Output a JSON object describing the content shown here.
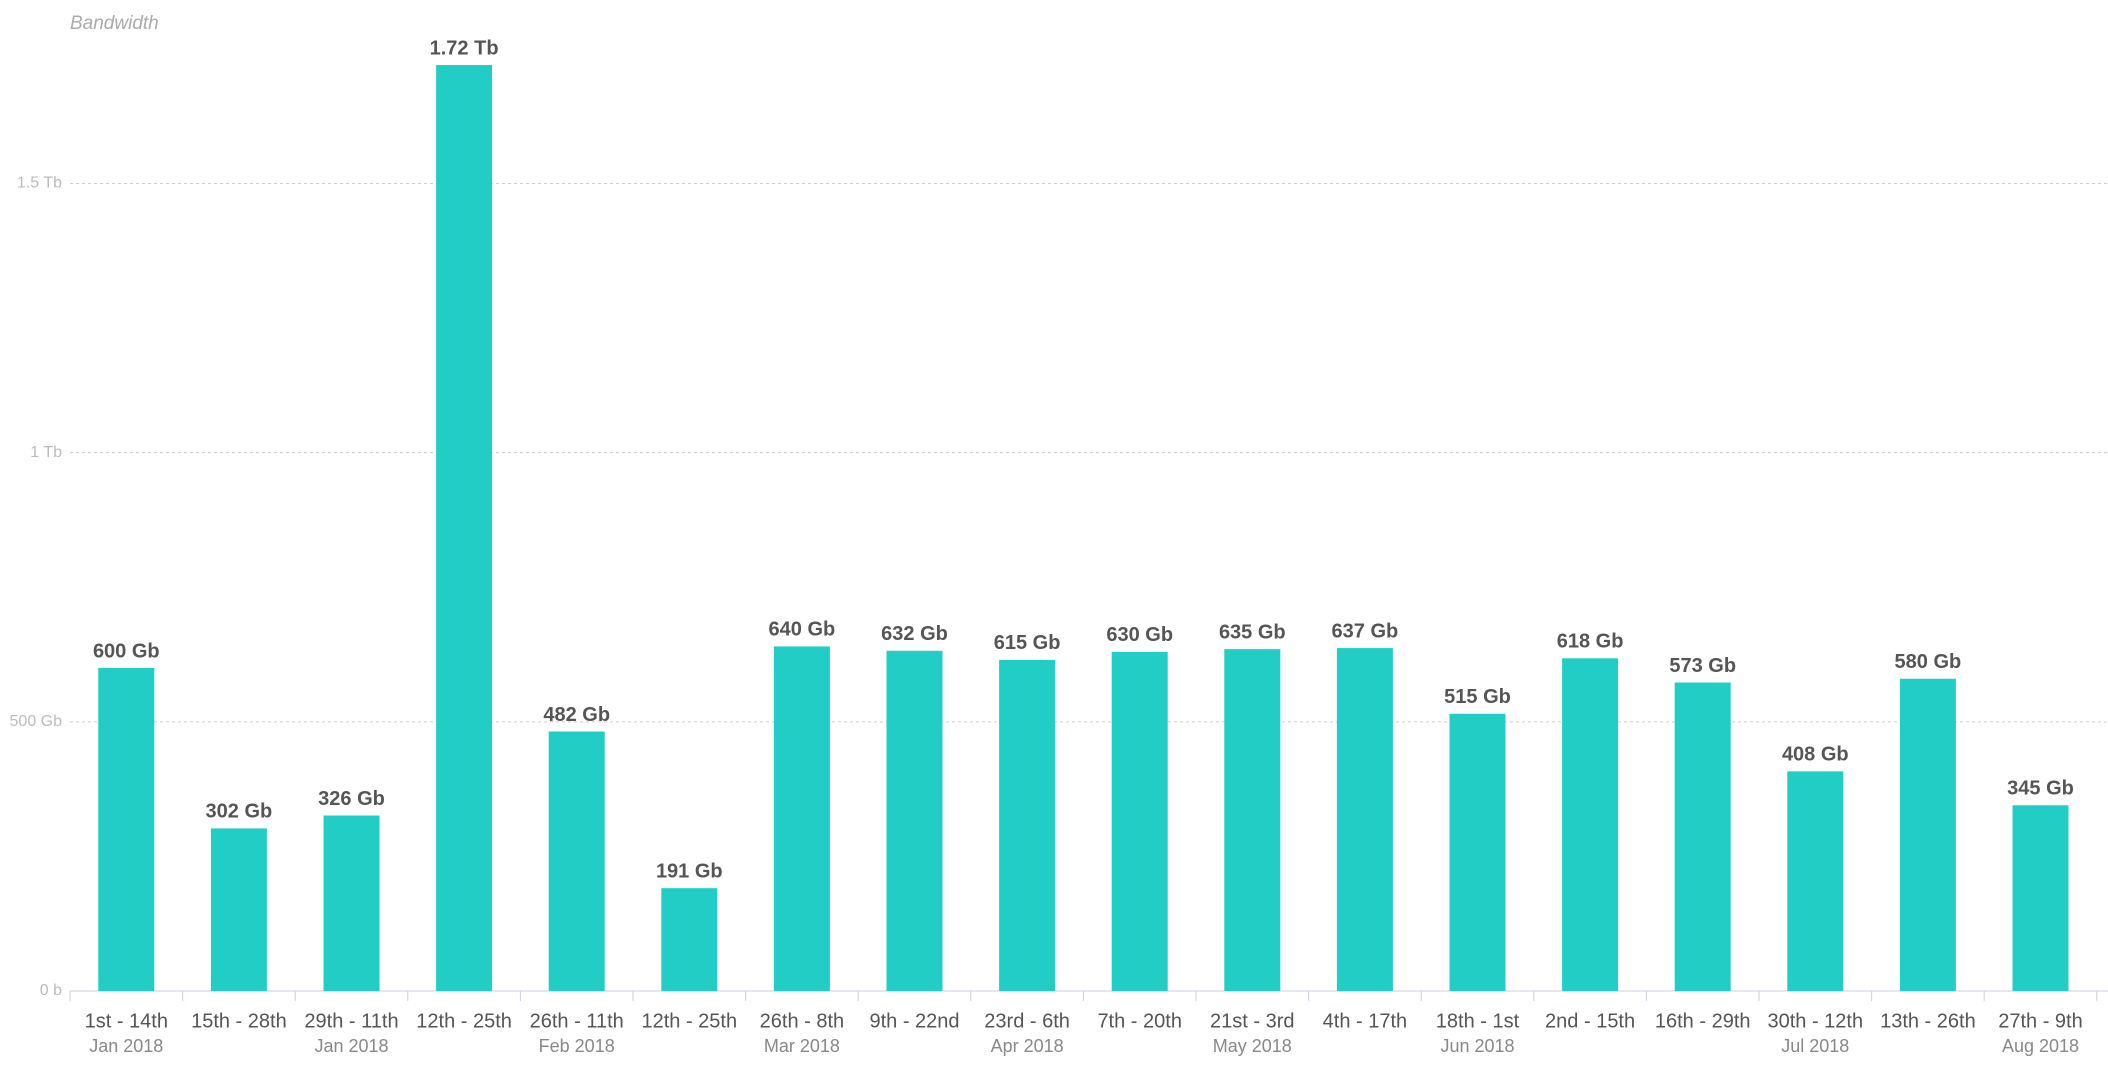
{
  "chart_data": {
    "type": "bar",
    "title": "Bandwidth",
    "categories": [
      "1st - 14th",
      "15th - 28th",
      "29th - 11th",
      "12th - 25th",
      "26th - 11th",
      "12th - 25th",
      "26th - 8th",
      "9th - 22nd",
      "23rd - 6th",
      "7th - 20th",
      "21st - 3rd",
      "4th - 17th",
      "18th - 1st",
      "2nd - 15th",
      "16th - 29th",
      "30th - 12th",
      "13th - 26th",
      "27th - 9th"
    ],
    "sublabels": [
      "Jan 2018",
      null,
      "Jan 2018",
      null,
      "Feb 2018",
      null,
      "Mar 2018",
      null,
      "Apr 2018",
      null,
      "May 2018",
      null,
      "Jun 2018",
      null,
      null,
      "Jul 2018",
      null,
      "Aug 2018"
    ],
    "values": [
      600,
      302,
      326,
      1720,
      482,
      191,
      640,
      632,
      615,
      630,
      635,
      637,
      515,
      618,
      573,
      408,
      580,
      345
    ],
    "value_labels": [
      "600 Gb",
      "302 Gb",
      "326 Gb",
      "1.72 Tb",
      "482 Gb",
      "191 Gb",
      "640 Gb",
      "632 Gb",
      "615 Gb",
      "630 Gb",
      "635 Gb",
      "637 Gb",
      "515 Gb",
      "618 Gb",
      "573 Gb",
      "408 Gb",
      "580 Gb",
      "345 Gb"
    ],
    "color": "#22cdc5",
    "ylim": [
      0,
      1800
    ],
    "yticks": [
      {
        "value": 0,
        "label": "0 b"
      },
      {
        "value": 500,
        "label": "500 Gb"
      },
      {
        "value": 1000,
        "label": "1 Tb"
      },
      {
        "value": 1500,
        "label": "1.5 Tb"
      }
    ],
    "grid": true
  }
}
